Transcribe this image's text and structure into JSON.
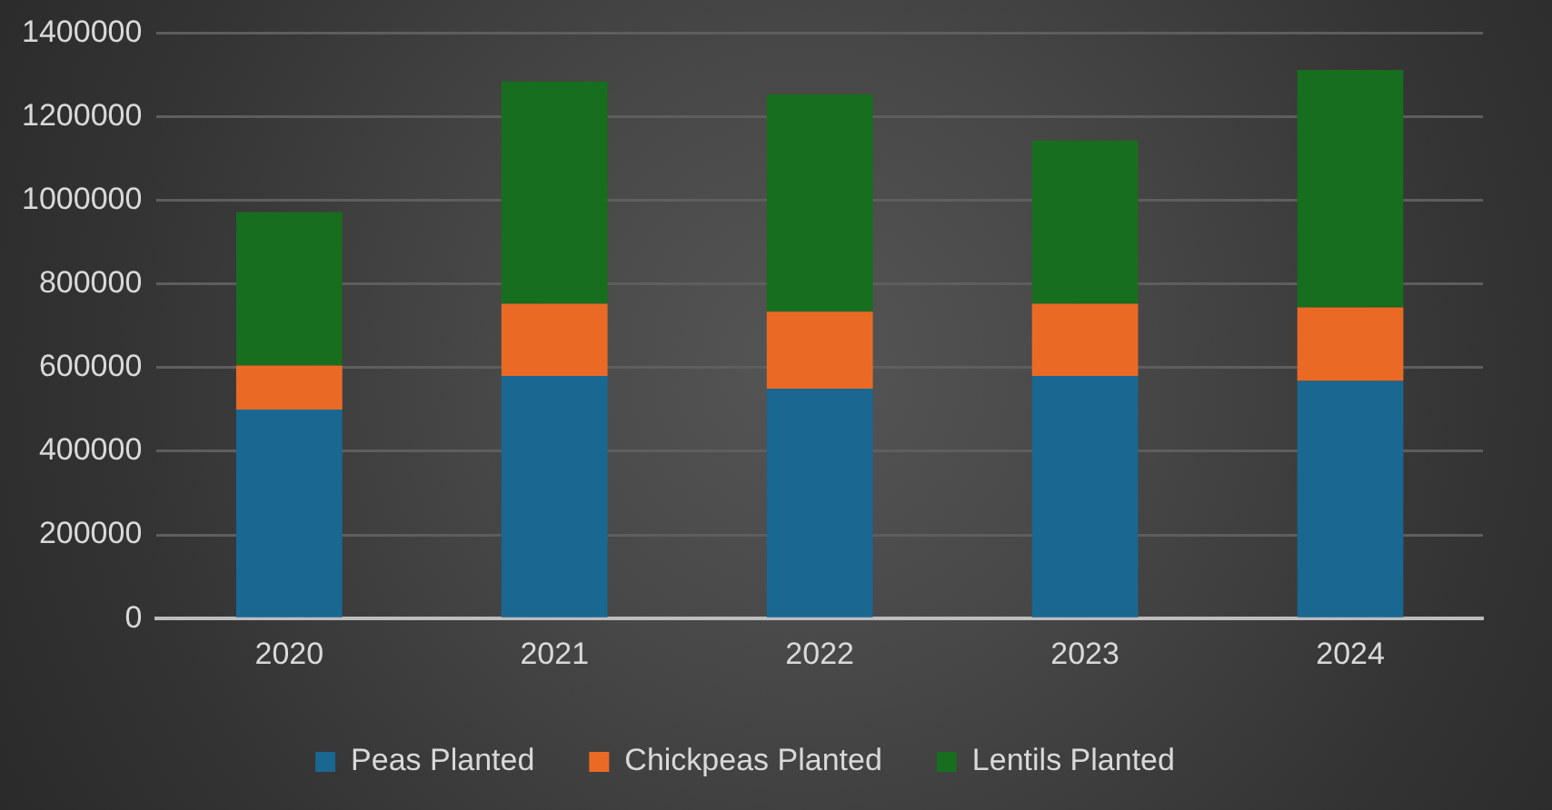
{
  "chart_data": {
    "type": "bar",
    "stacked": true,
    "categories": [
      "2020",
      "2021",
      "2022",
      "2023",
      "2024"
    ],
    "series": [
      {
        "name": "Peas Planted",
        "color": "#1a6791",
        "values": [
          500000,
          580000,
          550000,
          580000,
          568000
        ]
      },
      {
        "name": "Chickpeas Planted",
        "color": "#ea6a25",
        "values": [
          105000,
          173000,
          184000,
          173000,
          176000
        ]
      },
      {
        "name": "Lentils Planted",
        "color": "#176e1e",
        "values": [
          367000,
          531000,
          519000,
          390000,
          568000
        ]
      }
    ],
    "ylim": [
      0,
      1400000
    ],
    "yticks": [
      0,
      200000,
      400000,
      600000,
      800000,
      1000000,
      1200000,
      1400000
    ],
    "grid": "y",
    "legend": "bottom"
  }
}
